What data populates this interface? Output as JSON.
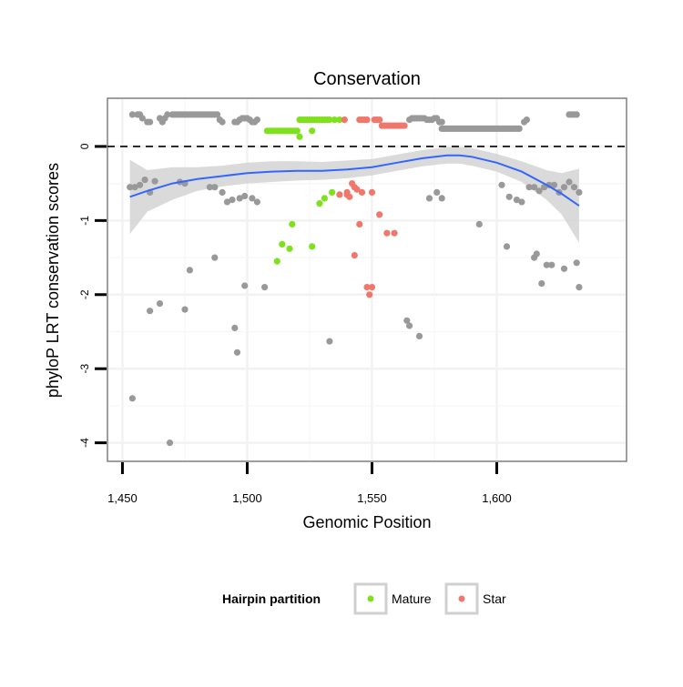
{
  "chart_data": {
    "type": "scatter",
    "title": "Conservation",
    "xlabel": "Genomic Position",
    "ylabel": "phyloP LRT conservation scores",
    "xlim": [
      1444,
      1652
    ],
    "ylim": [
      -4.25,
      0.65
    ],
    "x_ticks": [
      1450,
      1500,
      1550,
      1600
    ],
    "x_tick_labels": [
      "1,450",
      "1,500",
      "1,550",
      "1,600"
    ],
    "y_ticks": [
      0,
      -1,
      -2,
      -3,
      -4
    ],
    "y_tick_labels": [
      "0",
      "-1",
      "-2",
      "-3",
      "-4"
    ],
    "grid": true,
    "reference_line": {
      "y": 0,
      "style": "dashed"
    },
    "legend": {
      "title": "Hairpin partition",
      "position": "bottom",
      "entries": [
        {
          "label": "Mature",
          "color": "#7fe01c"
        },
        {
          "label": "Star",
          "color": "#f0776c"
        }
      ]
    },
    "colors": {
      "other": "#999999",
      "Mature": "#7fe01c",
      "Star": "#f0776c",
      "smooth_line": "#3366ff",
      "smooth_band": "#d4d4d4"
    },
    "series": [
      {
        "name": "",
        "x": [
          1454,
          1456,
          1457,
          1458,
          1460,
          1461,
          1465,
          1466,
          1467,
          1468,
          1470,
          1471,
          1472,
          1473,
          1474,
          1475,
          1476,
          1477,
          1478,
          1479,
          1480,
          1481,
          1482,
          1483,
          1484,
          1485,
          1486,
          1487,
          1488,
          1489,
          1490,
          1495,
          1496,
          1497,
          1498,
          1499,
          1500,
          1501,
          1502,
          1503,
          1504,
          1565,
          1566,
          1567,
          1568,
          1569,
          1570,
          1571,
          1572,
          1573,
          1574,
          1575,
          1576,
          1577,
          1578,
          1611,
          1612,
          1629,
          1630,
          1631,
          1632,
          1578,
          1579,
          1580,
          1581,
          1582,
          1583,
          1584,
          1585,
          1586,
          1587,
          1588,
          1589,
          1590,
          1591,
          1592,
          1593,
          1594,
          1595,
          1596,
          1597,
          1598,
          1599,
          1600,
          1601,
          1602,
          1603,
          1604,
          1605,
          1606,
          1607,
          1608,
          1609,
          1453,
          1455,
          1457,
          1459,
          1461,
          1463,
          1473,
          1475,
          1485,
          1487,
          1490,
          1492,
          1494,
          1497,
          1499,
          1502,
          1504,
          1573,
          1576,
          1578,
          1602,
          1605,
          1608,
          1610,
          1613,
          1615,
          1617,
          1619,
          1621,
          1623,
          1625,
          1627,
          1629,
          1631,
          1633,
          1454,
          1461,
          1465,
          1475,
          1477,
          1487,
          1495,
          1496,
          1499,
          1507,
          1533,
          1564,
          1565,
          1569,
          1593,
          1604,
          1615,
          1616,
          1618,
          1620,
          1622,
          1627,
          1632,
          1633,
          1469
        ],
        "y": [
          0.43,
          0.43,
          0.43,
          0.38,
          0.33,
          0.33,
          0.38,
          0.33,
          0.38,
          0.43,
          0.43,
          0.43,
          0.43,
          0.43,
          0.43,
          0.43,
          0.43,
          0.43,
          0.43,
          0.43,
          0.43,
          0.43,
          0.43,
          0.43,
          0.43,
          0.43,
          0.43,
          0.43,
          0.43,
          0.36,
          0.33,
          0.33,
          0.33,
          0.36,
          0.38,
          0.38,
          0.38,
          0.36,
          0.33,
          0.33,
          0.36,
          0.36,
          0.38,
          0.38,
          0.38,
          0.38,
          0.38,
          0.38,
          0.36,
          0.36,
          0.36,
          0.38,
          0.38,
          0.33,
          0.33,
          0.33,
          0.36,
          0.43,
          0.43,
          0.43,
          0.43,
          0.24,
          0.24,
          0.24,
          0.24,
          0.24,
          0.24,
          0.24,
          0.24,
          0.24,
          0.24,
          0.24,
          0.24,
          0.24,
          0.24,
          0.24,
          0.24,
          0.24,
          0.24,
          0.24,
          0.24,
          0.24,
          0.24,
          0.24,
          0.24,
          0.24,
          0.24,
          0.24,
          0.24,
          0.24,
          0.24,
          0.24,
          0.24,
          -0.55,
          -0.55,
          -0.52,
          -0.45,
          -0.62,
          -0.47,
          -0.48,
          -0.5,
          -0.55,
          -0.55,
          -0.62,
          -0.75,
          -0.72,
          -0.7,
          -0.67,
          -0.7,
          -0.75,
          -0.7,
          -0.62,
          -0.7,
          -0.52,
          -0.68,
          -0.72,
          -0.75,
          -0.55,
          -0.55,
          -0.6,
          -0.55,
          -0.52,
          -0.52,
          -0.62,
          -0.55,
          -0.48,
          -0.55,
          -0.62,
          -3.4,
          -2.22,
          -2.12,
          -2.2,
          -1.67,
          -1.5,
          -2.45,
          -2.78,
          -1.88,
          -1.9,
          -2.63,
          -2.35,
          -2.42,
          -2.56,
          -1.05,
          -1.35,
          -1.5,
          -1.45,
          -1.85,
          -1.6,
          -1.6,
          -1.65,
          -1.57,
          -1.9,
          -4.0
        ]
      },
      {
        "name": "Mature",
        "x": [
          1508,
          1509,
          1510,
          1511,
          1512,
          1513,
          1514,
          1515,
          1516,
          1517,
          1518,
          1519,
          1520,
          1521,
          1522,
          1523,
          1524,
          1525,
          1526,
          1527,
          1528,
          1529,
          1530,
          1531,
          1532,
          1533,
          1535,
          1537,
          1521,
          1526,
          1512,
          1514,
          1517,
          1518,
          1529,
          1531,
          1534,
          1526
        ],
        "y": [
          0.21,
          0.21,
          0.21,
          0.21,
          0.21,
          0.21,
          0.21,
          0.21,
          0.21,
          0.21,
          0.21,
          0.21,
          0.21,
          0.36,
          0.36,
          0.36,
          0.36,
          0.36,
          0.36,
          0.36,
          0.36,
          0.36,
          0.36,
          0.36,
          0.36,
          0.36,
          0.36,
          0.36,
          0.13,
          0.21,
          -1.55,
          -1.32,
          -1.38,
          -1.05,
          -0.77,
          -0.7,
          -0.62,
          -1.35
        ]
      },
      {
        "name": "Star",
        "x": [
          1539,
          1545,
          1546,
          1547,
          1548,
          1551,
          1552,
          1553,
          1554,
          1555,
          1556,
          1557,
          1558,
          1559,
          1560,
          1561,
          1562,
          1563,
          1537,
          1540,
          1541,
          1542,
          1543,
          1544,
          1546,
          1550,
          1540,
          1543,
          1545,
          1548,
          1549,
          1550,
          1553,
          1556,
          1559
        ],
        "y": [
          0.36,
          0.36,
          0.36,
          0.36,
          0.36,
          0.36,
          0.36,
          0.36,
          0.28,
          0.28,
          0.28,
          0.28,
          0.28,
          0.28,
          0.28,
          0.28,
          0.28,
          0.28,
          -0.65,
          -0.65,
          -0.68,
          -0.5,
          -0.55,
          -0.58,
          -0.62,
          -0.62,
          -0.62,
          -1.47,
          -1.05,
          -1.9,
          -2.0,
          -1.9,
          -0.92,
          -1.17,
          -1.17
        ]
      }
    ],
    "smooth": {
      "x": [
        1453,
        1460,
        1470,
        1480,
        1490,
        1500,
        1510,
        1520,
        1530,
        1540,
        1550,
        1560,
        1570,
        1580,
        1585,
        1590,
        1600,
        1610,
        1620,
        1626,
        1633
      ],
      "y": [
        -0.68,
        -0.6,
        -0.5,
        -0.44,
        -0.4,
        -0.36,
        -0.34,
        -0.33,
        -0.33,
        -0.31,
        -0.28,
        -0.22,
        -0.16,
        -0.12,
        -0.12,
        -0.14,
        -0.22,
        -0.34,
        -0.52,
        -0.64,
        -0.8
      ],
      "lower": [
        -1.18,
        -0.88,
        -0.72,
        -0.6,
        -0.54,
        -0.5,
        -0.48,
        -0.46,
        -0.45,
        -0.43,
        -0.39,
        -0.33,
        -0.27,
        -0.23,
        -0.23,
        -0.26,
        -0.34,
        -0.48,
        -0.72,
        -0.92,
        -1.3
      ],
      "upper": [
        -0.18,
        -0.32,
        -0.28,
        -0.28,
        -0.26,
        -0.22,
        -0.2,
        -0.2,
        -0.21,
        -0.19,
        -0.17,
        -0.11,
        -0.05,
        -0.01,
        -0.01,
        -0.02,
        -0.1,
        -0.2,
        -0.32,
        -0.36,
        -0.3
      ]
    }
  }
}
